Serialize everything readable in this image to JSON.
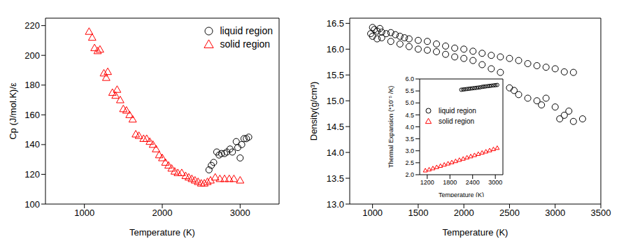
{
  "chart_data": [
    {
      "type": "scatter",
      "x_label": "Temperature (K)",
      "y_label": "Cp (J/mol.K)/ε",
      "xlim": [
        500,
        3500
      ],
      "xticks": [
        1000,
        2000,
        3000
      ],
      "ylim": [
        100,
        225
      ],
      "yticks": [
        100,
        120,
        140,
        160,
        180,
        200,
        220
      ],
      "legend": "upper right",
      "series": [
        {
          "name": "liquid region",
          "color": "#000000",
          "marker": "circle",
          "x": [
            2600,
            2630,
            2660,
            2700,
            2730,
            2760,
            2800,
            2830,
            2870,
            2900,
            2950,
            2970,
            3000,
            3020,
            3050,
            3080,
            3110
          ],
          "values": [
            123,
            126,
            128,
            135,
            133,
            134,
            134,
            135,
            137,
            135,
            142,
            138,
            131,
            140,
            144,
            144,
            145
          ]
        },
        {
          "name": "solid region",
          "color": "#ff0000",
          "marker": "triangle",
          "x": [
            1060,
            1100,
            1130,
            1170,
            1200,
            1250,
            1280,
            1300,
            1360,
            1400,
            1420,
            1460,
            1500,
            1540,
            1580,
            1620,
            1660,
            1700,
            1760,
            1800,
            1840,
            1880,
            1920,
            1960,
            2000,
            2040,
            2080,
            2120,
            2160,
            2200,
            2250,
            2300,
            2340,
            2380,
            2420,
            2460,
            2500,
            2540,
            2580,
            2620,
            2680,
            2740,
            2800,
            2860,
            2920,
            3000
          ],
          "values": [
            216,
            212,
            205,
            203,
            204,
            188,
            185,
            189,
            175,
            173,
            177,
            170,
            164,
            163,
            160,
            157,
            147,
            146,
            144,
            144,
            142,
            140,
            137,
            133,
            131,
            128,
            126,
            124,
            122,
            121,
            121,
            119,
            118,
            117,
            116,
            115,
            114,
            114,
            115,
            116,
            118,
            117,
            117,
            117,
            117,
            116
          ]
        }
      ]
    },
    {
      "type": "scatter",
      "x_label": "Temperature (K)",
      "y_label": "Density(g/cm³)",
      "xlim": [
        750,
        3500
      ],
      "xticks": [
        1000,
        1500,
        2000,
        2500,
        3000,
        3500
      ],
      "ylim": [
        13,
        16.6
      ],
      "yticks": [
        {
          "value": 13,
          "label": "13.0"
        },
        {
          "value": 13.5,
          "label": "13.5"
        },
        {
          "value": 14,
          "label": "14.0"
        },
        {
          "value": 14.5,
          "label": "14.5"
        },
        {
          "value": 15,
          "label": "15.0"
        },
        {
          "value": 15.5,
          "label": "15.5"
        },
        {
          "value": 16,
          "label": "16.0"
        },
        {
          "value": 16.5,
          "label": "16.5"
        }
      ],
      "series": [
        {
          "color": "#000000",
          "marker": "circle",
          "x": [
            1000,
            1020,
            1050,
            1080,
            1100,
            1150,
            1200,
            1250,
            1300,
            1350,
            1400,
            1500,
            1600,
            1700,
            1800,
            1900,
            2000,
            2100,
            2200,
            2300,
            2400,
            2500,
            2600,
            2700,
            2800,
            2900,
            3000,
            3100,
            3200,
            980,
            1000,
            1050,
            1100,
            1200,
            1300,
            1400,
            1500,
            1600,
            1700,
            1800,
            1900,
            2000,
            2100,
            2200,
            2300,
            2400,
            2500,
            2550,
            2600,
            2700,
            2800,
            2850,
            2900,
            3000,
            3050,
            3100,
            3150,
            3200,
            3300
          ],
          "values": [
            16.42,
            16.38,
            16.35,
            16.4,
            16.33,
            16.3,
            16.32,
            16.28,
            16.25,
            16.22,
            16.2,
            16.17,
            16.15,
            16.1,
            16.06,
            16.02,
            16.0,
            15.96,
            15.92,
            15.88,
            15.85,
            15.82,
            15.78,
            15.72,
            15.68,
            15.65,
            15.62,
            15.56,
            15.55,
            16.3,
            16.25,
            16.2,
            16.22,
            16.15,
            16.1,
            16.05,
            16.0,
            15.98,
            15.95,
            15.9,
            15.85,
            15.82,
            15.78,
            15.7,
            15.62,
            15.55,
            15.25,
            15.2,
            15.12,
            15.05,
            15.0,
            14.92,
            15.05,
            14.88,
            14.65,
            14.72,
            14.8,
            14.6,
            14.65
          ]
        }
      ]
    },
    {
      "type": "scatter",
      "x_label": "Temperature (K)",
      "y_label": "Thermal Expansion (*10⁻⁵ /K)",
      "xlim": [
        1000,
        3200
      ],
      "xticks": [
        1200,
        1800,
        2400,
        3000
      ],
      "ylim": [
        2,
        6
      ],
      "yticks": [
        {
          "value": 2,
          "label": "2.0"
        },
        {
          "value": 2.5,
          "label": "2.5"
        },
        {
          "value": 3,
          "label": "3.0"
        },
        {
          "value": 3.5,
          "label": "3.5"
        },
        {
          "value": 4,
          "label": "4.0"
        },
        {
          "value": 4.5,
          "label": "4.5"
        },
        {
          "value": 5,
          "label": "5.0"
        },
        {
          "value": 5.5,
          "label": "5.5"
        },
        {
          "value": 6,
          "label": "6.0"
        }
      ],
      "legend": "left",
      "series": [
        {
          "name": "liquid region",
          "color": "#000000",
          "marker": "circle",
          "x": [
            2100,
            2150,
            2200,
            2250,
            2300,
            2350,
            2400,
            2450,
            2500,
            2550,
            2600,
            2650,
            2700,
            2750,
            2800,
            2850,
            2900,
            2950,
            3000,
            3050
          ],
          "values": [
            5.55,
            5.56,
            5.57,
            5.58,
            5.59,
            5.6,
            5.61,
            5.62,
            5.63,
            5.64,
            5.65,
            5.67,
            5.68,
            5.69,
            5.7,
            5.71,
            5.72,
            5.73,
            5.74,
            5.75
          ]
        },
        {
          "name": "solid region",
          "color": "#ff0000",
          "marker": "triangle",
          "x": [
            1150,
            1250,
            1350,
            1450,
            1550,
            1650,
            1750,
            1850,
            1950,
            2050,
            2150,
            2250,
            2350,
            2450,
            2550,
            2650,
            2750,
            2850,
            2950,
            3050
          ],
          "values": [
            2.18,
            2.22,
            2.27,
            2.32,
            2.37,
            2.42,
            2.47,
            2.52,
            2.57,
            2.62,
            2.67,
            2.72,
            2.77,
            2.82,
            2.87,
            2.92,
            2.97,
            3.02,
            3.07,
            3.12
          ]
        }
      ]
    }
  ]
}
